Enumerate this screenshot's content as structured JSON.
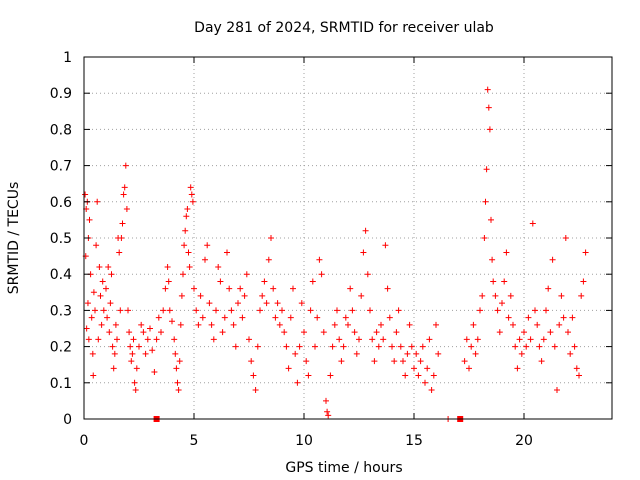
{
  "chart_data": {
    "type": "scatter",
    "title": "Day 281 of 2024, SRMTID for receiver ulab",
    "xlabel": "GPS time / hours",
    "ylabel": "SRMTID / TECUs",
    "xlim": [
      0,
      24
    ],
    "ylim": [
      0,
      1
    ],
    "xticks": [
      0,
      5,
      10,
      15,
      20
    ],
    "xtick_labels": [
      "0",
      "5",
      "10",
      "15",
      "20"
    ],
    "yticks": [
      0,
      0.1,
      0.2,
      0.3,
      0.4,
      0.5,
      0.6,
      0.7,
      0.8,
      0.9,
      1
    ],
    "ytick_labels": [
      "0",
      "0.1",
      "0.2",
      "0.3",
      "0.4",
      "0.5",
      "0.6",
      "0.7",
      "0.8",
      "0.9",
      "1"
    ],
    "grid": true,
    "marker": "+",
    "color": "#ff0000",
    "series": [
      {
        "name": "SRMTID",
        "points": [
          [
            0.05,
            0.62
          ],
          [
            0.08,
            0.45
          ],
          [
            0.1,
            0.58
          ],
          [
            0.12,
            0.25
          ],
          [
            0.15,
            0.6
          ],
          [
            0.18,
            0.32
          ],
          [
            0.2,
            0.5
          ],
          [
            0.22,
            0.22
          ],
          [
            0.25,
            0.55
          ],
          [
            0.3,
            0.4
          ],
          [
            0.35,
            0.28
          ],
          [
            0.4,
            0.18
          ],
          [
            0.42,
            0.12
          ],
          [
            0.45,
            0.35
          ],
          [
            0.5,
            0.3
          ],
          [
            0.55,
            0.48
          ],
          [
            0.6,
            0.6
          ],
          [
            0.65,
            0.22
          ],
          [
            0.7,
            0.42
          ],
          [
            0.75,
            0.34
          ],
          [
            0.8,
            0.26
          ],
          [
            0.85,
            0.38
          ],
          [
            0.9,
            0.3
          ],
          [
            1.0,
            0.36
          ],
          [
            1.05,
            0.28
          ],
          [
            1.1,
            0.42
          ],
          [
            1.15,
            0.24
          ],
          [
            1.2,
            0.32
          ],
          [
            1.25,
            0.4
          ],
          [
            1.3,
            0.2
          ],
          [
            1.35,
            0.14
          ],
          [
            1.4,
            0.18
          ],
          [
            1.45,
            0.26
          ],
          [
            1.5,
            0.22
          ],
          [
            1.55,
            0.5
          ],
          [
            1.6,
            0.46
          ],
          [
            1.65,
            0.3
          ],
          [
            1.7,
            0.5
          ],
          [
            1.75,
            0.54
          ],
          [
            1.8,
            0.62
          ],
          [
            1.85,
            0.64
          ],
          [
            1.9,
            0.7
          ],
          [
            1.95,
            0.58
          ],
          [
            2.0,
            0.3
          ],
          [
            2.05,
            0.24
          ],
          [
            2.1,
            0.2
          ],
          [
            2.15,
            0.16
          ],
          [
            2.2,
            0.18
          ],
          [
            2.25,
            0.22
          ],
          [
            2.3,
            0.1
          ],
          [
            2.35,
            0.08
          ],
          [
            2.4,
            0.14
          ],
          [
            2.5,
            0.2
          ],
          [
            2.6,
            0.26
          ],
          [
            2.7,
            0.24
          ],
          [
            2.8,
            0.18
          ],
          [
            2.9,
            0.22
          ],
          [
            3.0,
            0.25
          ],
          [
            3.1,
            0.19
          ],
          [
            3.2,
            0.13
          ],
          [
            3.3,
            0.22
          ],
          [
            3.4,
            0.28
          ],
          [
            3.5,
            0.24
          ],
          [
            3.6,
            0.3
          ],
          [
            3.7,
            0.36
          ],
          [
            3.8,
            0.42
          ],
          [
            3.85,
            0.38
          ],
          [
            3.9,
            0.3
          ],
          [
            4.0,
            0.27
          ],
          [
            4.1,
            0.22
          ],
          [
            4.15,
            0.18
          ],
          [
            4.2,
            0.14
          ],
          [
            4.25,
            0.1
          ],
          [
            4.3,
            0.08
          ],
          [
            4.35,
            0.16
          ],
          [
            4.4,
            0.26
          ],
          [
            4.45,
            0.34
          ],
          [
            4.5,
            0.4
          ],
          [
            4.55,
            0.48
          ],
          [
            4.6,
            0.52
          ],
          [
            4.65,
            0.56
          ],
          [
            4.7,
            0.58
          ],
          [
            4.75,
            0.46
          ],
          [
            4.8,
            0.42
          ],
          [
            4.85,
            0.64
          ],
          [
            4.9,
            0.62
          ],
          [
            4.95,
            0.6
          ],
          [
            5.0,
            0.36
          ],
          [
            5.1,
            0.3
          ],
          [
            5.2,
            0.26
          ],
          [
            5.3,
            0.34
          ],
          [
            5.4,
            0.28
          ],
          [
            5.5,
            0.44
          ],
          [
            5.6,
            0.48
          ],
          [
            5.7,
            0.32
          ],
          [
            5.8,
            0.26
          ],
          [
            5.9,
            0.22
          ],
          [
            6.0,
            0.3
          ],
          [
            6.1,
            0.42
          ],
          [
            6.2,
            0.38
          ],
          [
            6.3,
            0.24
          ],
          [
            6.4,
            0.28
          ],
          [
            6.5,
            0.46
          ],
          [
            6.6,
            0.36
          ],
          [
            6.7,
            0.3
          ],
          [
            6.8,
            0.26
          ],
          [
            6.9,
            0.2
          ],
          [
            7.0,
            0.32
          ],
          [
            7.1,
            0.36
          ],
          [
            7.2,
            0.28
          ],
          [
            7.3,
            0.34
          ],
          [
            7.4,
            0.4
          ],
          [
            7.5,
            0.22
          ],
          [
            7.6,
            0.16
          ],
          [
            7.7,
            0.12
          ],
          [
            7.8,
            0.08
          ],
          [
            7.9,
            0.2
          ],
          [
            8.0,
            0.3
          ],
          [
            8.1,
            0.34
          ],
          [
            8.2,
            0.38
          ],
          [
            8.3,
            0.32
          ],
          [
            8.4,
            0.44
          ],
          [
            8.5,
            0.5
          ],
          [
            8.6,
            0.36
          ],
          [
            8.7,
            0.28
          ],
          [
            8.8,
            0.32
          ],
          [
            8.9,
            0.26
          ],
          [
            9.0,
            0.3
          ],
          [
            9.1,
            0.24
          ],
          [
            9.2,
            0.2
          ],
          [
            9.3,
            0.14
          ],
          [
            9.4,
            0.28
          ],
          [
            9.5,
            0.36
          ],
          [
            9.6,
            0.18
          ],
          [
            9.7,
            0.1
          ],
          [
            9.8,
            0.2
          ],
          [
            9.9,
            0.32
          ],
          [
            10.0,
            0.24
          ],
          [
            10.1,
            0.16
          ],
          [
            10.2,
            0.12
          ],
          [
            10.3,
            0.3
          ],
          [
            10.4,
            0.38
          ],
          [
            10.5,
            0.2
          ],
          [
            10.6,
            0.28
          ],
          [
            10.7,
            0.44
          ],
          [
            10.8,
            0.4
          ],
          [
            10.9,
            0.24
          ],
          [
            11.0,
            0.05
          ],
          [
            11.05,
            0.02
          ],
          [
            11.1,
            0.01
          ],
          [
            11.2,
            0.12
          ],
          [
            11.3,
            0.2
          ],
          [
            11.4,
            0.26
          ],
          [
            11.5,
            0.3
          ],
          [
            11.6,
            0.22
          ],
          [
            11.7,
            0.16
          ],
          [
            11.8,
            0.2
          ],
          [
            11.9,
            0.28
          ],
          [
            12.0,
            0.26
          ],
          [
            12.1,
            0.36
          ],
          [
            12.2,
            0.3
          ],
          [
            12.3,
            0.24
          ],
          [
            12.4,
            0.18
          ],
          [
            12.5,
            0.22
          ],
          [
            12.6,
            0.34
          ],
          [
            12.7,
            0.46
          ],
          [
            12.8,
            0.52
          ],
          [
            12.9,
            0.4
          ],
          [
            13.0,
            0.3
          ],
          [
            13.1,
            0.22
          ],
          [
            13.2,
            0.16
          ],
          [
            13.3,
            0.24
          ],
          [
            13.4,
            0.2
          ],
          [
            13.5,
            0.26
          ],
          [
            13.6,
            0.22
          ],
          [
            13.7,
            0.48
          ],
          [
            13.8,
            0.36
          ],
          [
            13.9,
            0.28
          ],
          [
            14.0,
            0.2
          ],
          [
            14.1,
            0.16
          ],
          [
            14.2,
            0.24
          ],
          [
            14.3,
            0.3
          ],
          [
            14.4,
            0.2
          ],
          [
            14.5,
            0.16
          ],
          [
            14.6,
            0.12
          ],
          [
            14.7,
            0.18
          ],
          [
            14.8,
            0.26
          ],
          [
            14.9,
            0.2
          ],
          [
            15.0,
            0.14
          ],
          [
            15.1,
            0.18
          ],
          [
            15.2,
            0.12
          ],
          [
            15.3,
            0.16
          ],
          [
            15.4,
            0.2
          ],
          [
            15.5,
            0.1
          ],
          [
            15.6,
            0.14
          ],
          [
            15.7,
            0.22
          ],
          [
            15.8,
            0.08
          ],
          [
            15.9,
            0.12
          ],
          [
            16.0,
            0.26
          ],
          [
            16.1,
            0.18
          ],
          [
            16.55,
            0.0
          ],
          [
            17.2,
            0.0
          ],
          [
            17.3,
            0.16
          ],
          [
            17.4,
            0.22
          ],
          [
            17.5,
            0.14
          ],
          [
            17.6,
            0.2
          ],
          [
            17.7,
            0.26
          ],
          [
            17.8,
            0.18
          ],
          [
            17.9,
            0.22
          ],
          [
            18.0,
            0.3
          ],
          [
            18.1,
            0.34
          ],
          [
            18.2,
            0.5
          ],
          [
            18.25,
            0.6
          ],
          [
            18.3,
            0.69
          ],
          [
            18.35,
            0.91
          ],
          [
            18.4,
            0.86
          ],
          [
            18.45,
            0.8
          ],
          [
            18.5,
            0.55
          ],
          [
            18.55,
            0.44
          ],
          [
            18.6,
            0.38
          ],
          [
            18.7,
            0.34
          ],
          [
            18.8,
            0.3
          ],
          [
            18.9,
            0.24
          ],
          [
            19.0,
            0.32
          ],
          [
            19.1,
            0.38
          ],
          [
            19.2,
            0.46
          ],
          [
            19.3,
            0.28
          ],
          [
            19.4,
            0.34
          ],
          [
            19.5,
            0.26
          ],
          [
            19.6,
            0.2
          ],
          [
            19.7,
            0.14
          ],
          [
            19.8,
            0.22
          ],
          [
            19.9,
            0.18
          ],
          [
            20.0,
            0.24
          ],
          [
            20.1,
            0.2
          ],
          [
            20.2,
            0.28
          ],
          [
            20.3,
            0.22
          ],
          [
            20.4,
            0.54
          ],
          [
            20.5,
            0.3
          ],
          [
            20.6,
            0.26
          ],
          [
            20.7,
            0.2
          ],
          [
            20.8,
            0.16
          ],
          [
            20.9,
            0.22
          ],
          [
            21.0,
            0.3
          ],
          [
            21.1,
            0.36
          ],
          [
            21.2,
            0.24
          ],
          [
            21.3,
            0.44
          ],
          [
            21.4,
            0.2
          ],
          [
            21.5,
            0.08
          ],
          [
            21.6,
            0.26
          ],
          [
            21.7,
            0.34
          ],
          [
            21.8,
            0.28
          ],
          [
            21.9,
            0.5
          ],
          [
            22.0,
            0.24
          ],
          [
            22.1,
            0.18
          ],
          [
            22.2,
            0.28
          ],
          [
            22.3,
            0.2
          ],
          [
            22.4,
            0.14
          ],
          [
            22.5,
            0.12
          ],
          [
            22.6,
            0.34
          ],
          [
            22.7,
            0.38
          ],
          [
            22.8,
            0.46
          ]
        ]
      }
    ],
    "annotations": [
      {
        "type": "bar-marker",
        "x": 3.3,
        "y": 0
      },
      {
        "type": "bar-marker",
        "x": 17.1,
        "y": 0
      }
    ]
  }
}
